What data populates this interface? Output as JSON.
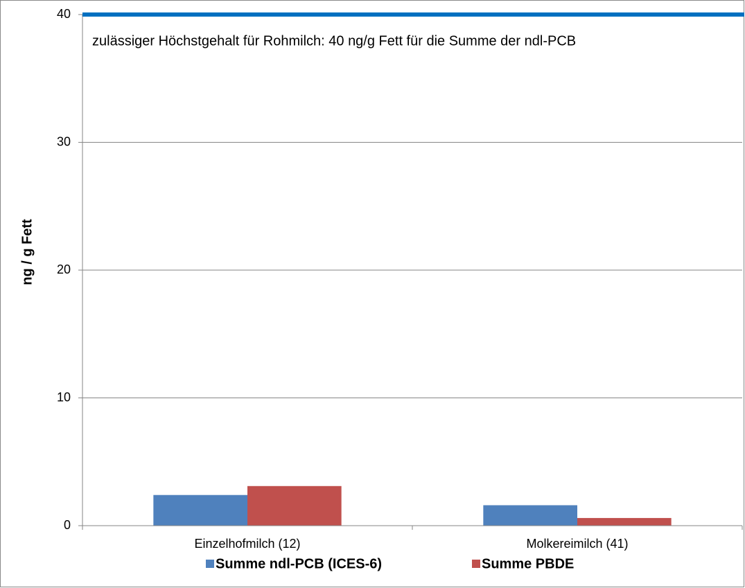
{
  "chart_data": {
    "type": "bar",
    "annotation": "zulässiger Höchstgehalt für Rohmilch: 40 ng/g Fett für die Summe der ndl-PCB",
    "y_label": "ng / g Fett",
    "categories": [
      "Einzelhofmilch (12)",
      "Molkereimilch (41)"
    ],
    "series": [
      {
        "name": "Summe ndl-PCB (ICES-6)",
        "color": "#4f81bd",
        "values": [
          2.4,
          1.6
        ]
      },
      {
        "name": "Summe PBDE",
        "color": "#c0504d",
        "values": [
          3.1,
          0.6
        ]
      }
    ],
    "reference_line": {
      "value": 40,
      "color": "#0070c0"
    },
    "ylim": [
      0,
      40
    ],
    "yticks": [
      0,
      10,
      20,
      30,
      40
    ],
    "grid": true,
    "legend": "bottom"
  }
}
